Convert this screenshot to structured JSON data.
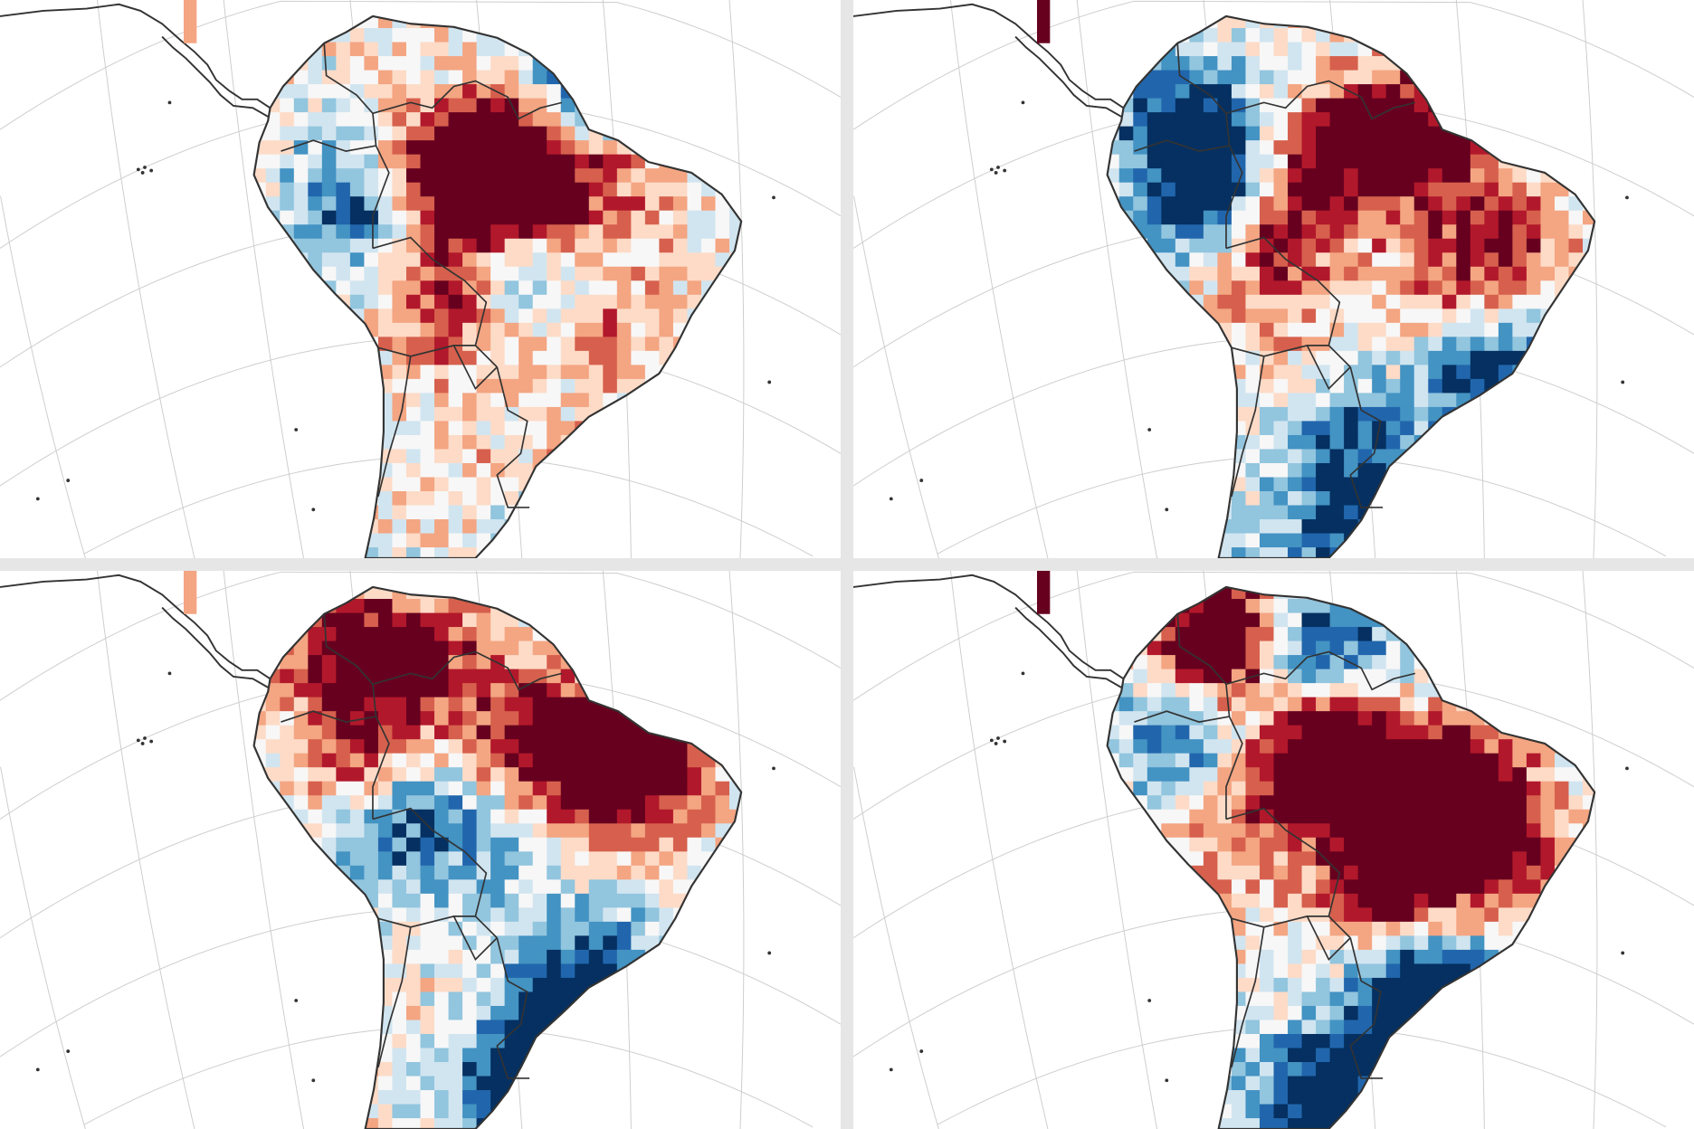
{
  "colormap": [
    "#053061",
    "#2166ac",
    "#4393c3",
    "#92c5de",
    "#d1e5f0",
    "#f7f7f7",
    "#fddbc7",
    "#f4a582",
    "#d6604d",
    "#b2182b",
    "#67001f"
  ],
  "outline_color": "#333333",
  "graticule_color": "#cccccc",
  "panels": [
    {
      "hotspots": [
        {
          "lon": -66,
          "lat": -3,
          "value": 1.3
        },
        {
          "lon": -58,
          "lat": -3.5,
          "value": 1.5
        },
        {
          "lon": -57,
          "lat": 0,
          "value": 1.0
        },
        {
          "lon": -52,
          "lat": 3,
          "value": -1.3
        },
        {
          "lon": -73,
          "lat": -5,
          "value": -1.1
        },
        {
          "lon": -58,
          "lat": -11,
          "value": -0.9
        },
        {
          "lon": -64,
          "lat": -13,
          "value": 1.0
        },
        {
          "lon": -48,
          "lat": -3,
          "value": 0.6
        },
        {
          "lon": -50,
          "lat": -15,
          "value": 0.5
        },
        {
          "lon": -62,
          "lat": -28,
          "value": 0.4
        },
        {
          "lon": -57,
          "lat": -30,
          "value": -0.6
        },
        {
          "lon": -52,
          "lat": -28,
          "value": 0.5
        }
      ]
    },
    {
      "hotspots": [
        {
          "lon": -60,
          "lat": 0,
          "value": 1.0
        },
        {
          "lon": -52,
          "lat": 0,
          "value": 1.0
        },
        {
          "lon": -68,
          "lat": -6,
          "value": 1.4
        },
        {
          "lon": -73,
          "lat": -4,
          "value": -1.6
        },
        {
          "lon": -77,
          "lat": 2,
          "value": -1.0
        },
        {
          "lon": -44,
          "lat": -8,
          "value": 0.7
        },
        {
          "lon": -50,
          "lat": -12,
          "value": 0.5
        },
        {
          "lon": -46,
          "lat": -19,
          "value": -1.1
        },
        {
          "lon": -60,
          "lat": -25,
          "value": -0.8
        },
        {
          "lon": -55,
          "lat": -32,
          "value": -0.7
        },
        {
          "lon": -64,
          "lat": -33,
          "value": -0.5
        },
        {
          "lon": -68,
          "lat": -15,
          "value": 0.3
        }
      ]
    },
    {
      "hotspots": [
        {
          "lon": -53,
          "lat": -27,
          "value": -1.8
        },
        {
          "lon": -57,
          "lat": -33,
          "value": -1.3
        },
        {
          "lon": -50,
          "lat": -20,
          "value": -0.8
        },
        {
          "lon": -55,
          "lat": -3,
          "value": 1.2
        },
        {
          "lon": -45,
          "lat": -3,
          "value": 1.3
        },
        {
          "lon": -75,
          "lat": 5,
          "value": 1.1
        },
        {
          "lon": -73,
          "lat": -4,
          "value": 1.0
        },
        {
          "lon": -70,
          "lat": -8,
          "value": -1.1
        },
        {
          "lon": -60,
          "lat": -10,
          "value": -0.4
        },
        {
          "lon": -65,
          "lat": 4,
          "value": 0.7
        },
        {
          "lon": -48,
          "lat": -10,
          "value": 0.3
        }
      ]
    },
    {
      "hotspots": [
        {
          "lon": -62,
          "lat": -4,
          "value": 2.2
        },
        {
          "lon": -50,
          "lat": -7,
          "value": 2.0
        },
        {
          "lon": -55,
          "lat": -14,
          "value": 1.4
        },
        {
          "lon": -73,
          "lat": 6,
          "value": 1.6
        },
        {
          "lon": -42,
          "lat": -12,
          "value": 0.6
        },
        {
          "lon": -63,
          "lat": 5,
          "value": -1.2
        },
        {
          "lon": -77,
          "lat": -2,
          "value": -0.8
        },
        {
          "lon": -52,
          "lat": -23,
          "value": -1.9
        },
        {
          "lon": -62,
          "lat": -30,
          "value": -1.1
        },
        {
          "lon": -64,
          "lat": -38,
          "value": -1.2
        },
        {
          "lon": -72,
          "lat": -10,
          "value": 0.5
        }
      ]
    }
  ]
}
